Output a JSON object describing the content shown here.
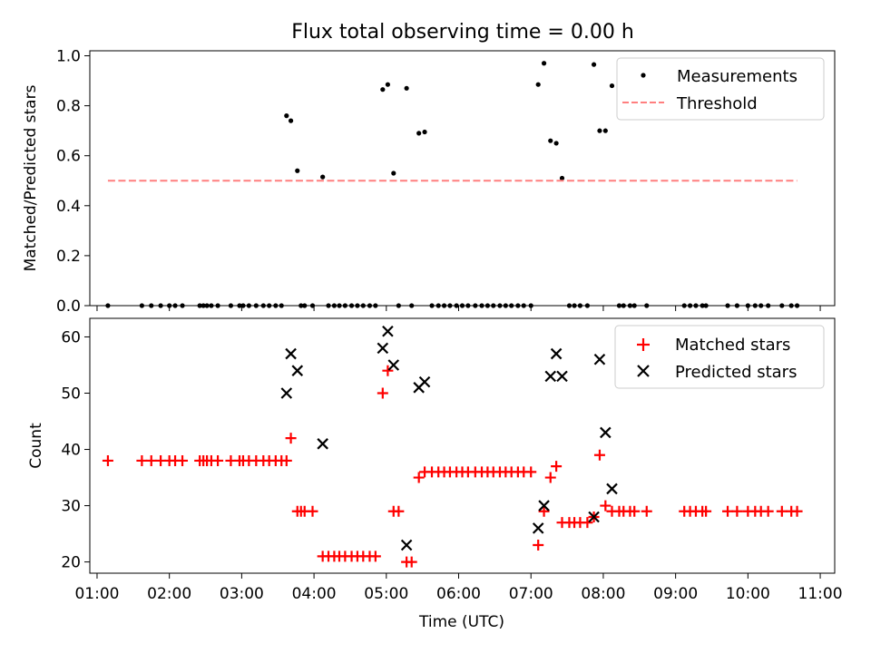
{
  "chart_data": [
    {
      "type": "scatter",
      "title": "Flux total observing time = 0.00 h",
      "xlabel": "",
      "ylabel": "Matched/Predicted stars",
      "xlim": [
        0.9,
        11.2
      ],
      "ylim": [
        0.0,
        1.02
      ],
      "yticks": [
        0.0,
        0.2,
        0.4,
        0.6,
        0.8,
        1.0
      ],
      "ytick_labels": [
        "0.0",
        "0.2",
        "0.4",
        "0.6",
        "0.8",
        "1.0"
      ],
      "legend_position": "top-right",
      "series": [
        {
          "name": "Measurements",
          "marker": "dot",
          "color": "#000000",
          "x": [
            1.15,
            1.62,
            1.75,
            1.88,
            2.0,
            2.08,
            2.18,
            2.42,
            2.47,
            2.52,
            2.58,
            2.67,
            2.85,
            2.97,
            3.02,
            3.1,
            3.2,
            3.3,
            3.38,
            3.47,
            3.55,
            3.62,
            3.68,
            3.77,
            3.82,
            3.87,
            3.98,
            4.12,
            4.2,
            4.28,
            4.35,
            4.43,
            4.52,
            4.6,
            4.68,
            4.77,
            4.85,
            4.95,
            5.02,
            5.1,
            5.17,
            5.28,
            5.35,
            5.45,
            5.53,
            5.63,
            5.72,
            5.8,
            5.88,
            5.97,
            6.05,
            6.13,
            6.23,
            6.32,
            6.4,
            6.48,
            6.57,
            6.65,
            6.73,
            6.82,
            6.9,
            7.0,
            7.1,
            7.18,
            7.27,
            7.35,
            7.43,
            7.53,
            7.6,
            7.68,
            7.78,
            7.87,
            7.95,
            8.03,
            8.12,
            8.22,
            8.28,
            8.37,
            8.43,
            8.6,
            9.12,
            9.2,
            9.28,
            9.37,
            9.42,
            9.72,
            9.85,
            10.0,
            10.1,
            10.18,
            10.28,
            10.47,
            10.6,
            10.68
          ],
          "y": [
            0,
            0,
            0,
            0,
            0,
            0,
            0,
            0,
            0,
            0,
            0,
            0,
            0,
            0,
            0,
            0,
            0,
            0,
            0,
            0,
            0,
            0.76,
            0.74,
            0.54,
            0,
            0,
            0,
            0.515,
            0,
            0,
            0,
            0,
            0,
            0,
            0,
            0,
            0,
            0.865,
            0.885,
            0.53,
            0,
            0.87,
            0,
            0.69,
            0.695,
            0,
            0,
            0,
            0,
            0,
            0,
            0,
            0,
            0,
            0,
            0,
            0,
            0,
            0,
            0,
            0,
            0,
            0.885,
            0.97,
            0.66,
            0.65,
            0.51,
            0,
            0,
            0,
            0,
            0.965,
            0.7,
            0.7,
            0.88,
            0,
            0,
            0,
            0,
            0,
            0,
            0,
            0,
            0,
            0,
            0,
            0,
            0,
            0,
            0,
            0,
            0,
            0,
            0
          ]
        },
        {
          "name": "Threshold",
          "line_style": "dashed",
          "color": "#ff7f7f",
          "x": [
            1.15,
            10.68
          ],
          "y": [
            0.5,
            0.5
          ]
        }
      ]
    },
    {
      "type": "scatter",
      "title": "",
      "xlabel": "Time (UTC)",
      "ylabel": "Count",
      "xlim": [
        0.9,
        11.2
      ],
      "ylim": [
        18,
        63.3
      ],
      "yticks": [
        20,
        30,
        40,
        50,
        60
      ],
      "ytick_labels": [
        "20",
        "30",
        "40",
        "50",
        "60"
      ],
      "xticks": [
        1,
        2,
        3,
        4,
        5,
        6,
        7,
        8,
        9,
        10,
        11
      ],
      "xtick_labels": [
        "01:00",
        "02:00",
        "03:00",
        "04:00",
        "05:00",
        "06:00",
        "07:00",
        "08:00",
        "09:00",
        "10:00",
        "11:00"
      ],
      "legend_position": "top-right",
      "series": [
        {
          "name": "Matched stars",
          "marker": "plus",
          "color": "#ff0000",
          "x": [
            1.15,
            1.62,
            1.75,
            1.88,
            2.0,
            2.08,
            2.18,
            2.42,
            2.47,
            2.52,
            2.58,
            2.67,
            2.85,
            2.97,
            3.02,
            3.1,
            3.2,
            3.3,
            3.38,
            3.47,
            3.55,
            3.62,
            3.68,
            3.77,
            3.82,
            3.87,
            3.98,
            4.12,
            4.2,
            4.28,
            4.35,
            4.43,
            4.52,
            4.6,
            4.68,
            4.77,
            4.85,
            4.95,
            5.02,
            5.1,
            5.17,
            5.28,
            5.35,
            5.45,
            5.53,
            5.63,
            5.72,
            5.8,
            5.88,
            5.97,
            6.05,
            6.13,
            6.23,
            6.32,
            6.4,
            6.48,
            6.57,
            6.65,
            6.73,
            6.82,
            6.9,
            7.0,
            7.1,
            7.18,
            7.27,
            7.35,
            7.43,
            7.53,
            7.6,
            7.68,
            7.78,
            7.87,
            7.95,
            8.03,
            8.12,
            8.22,
            8.28,
            8.37,
            8.43,
            8.6,
            9.12,
            9.2,
            9.28,
            9.37,
            9.42,
            9.72,
            9.85,
            10.0,
            10.1,
            10.18,
            10.28,
            10.47,
            10.6,
            10.68
          ],
          "y": [
            38,
            38,
            38,
            38,
            38,
            38,
            38,
            38,
            38,
            38,
            38,
            38,
            38,
            38,
            38,
            38,
            38,
            38,
            38,
            38,
            38,
            38,
            42,
            29,
            29,
            29,
            29,
            21,
            21,
            21,
            21,
            21,
            21,
            21,
            21,
            21,
            21,
            50,
            54,
            29,
            29,
            20,
            20,
            35,
            36,
            36,
            36,
            36,
            36,
            36,
            36,
            36,
            36,
            36,
            36,
            36,
            36,
            36,
            36,
            36,
            36,
            36,
            23,
            29,
            35,
            37,
            27,
            27,
            27,
            27,
            27,
            28,
            39,
            30,
            29,
            29,
            29,
            29,
            29,
            29,
            29,
            29,
            29,
            29,
            29,
            29,
            29,
            29,
            29,
            29,
            29,
            29,
            29,
            29
          ]
        },
        {
          "name": "Predicted stars",
          "marker": "x",
          "color": "#000000",
          "x": [
            3.62,
            3.68,
            3.77,
            4.12,
            4.95,
            5.02,
            5.1,
            5.28,
            5.45,
            5.53,
            7.1,
            7.18,
            7.27,
            7.35,
            7.43,
            7.87,
            7.95,
            8.03,
            8.12
          ],
          "y": [
            50,
            57,
            54,
            41,
            58,
            61,
            55,
            23,
            51,
            52,
            26,
            30,
            53,
            57,
            53,
            28,
            56,
            43,
            33
          ]
        }
      ]
    }
  ]
}
